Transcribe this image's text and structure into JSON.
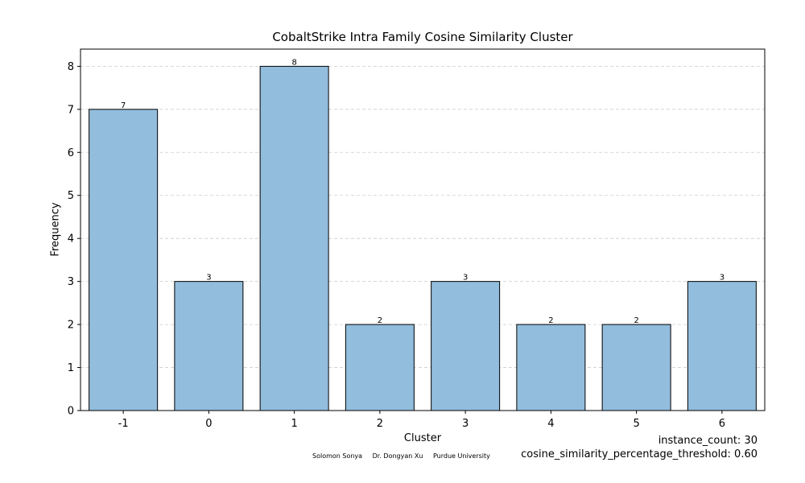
{
  "chart_data": {
    "type": "bar",
    "title": "CobaltStrike Intra Family Cosine Similarity Cluster",
    "xlabel": "Cluster",
    "ylabel": "Frequency",
    "categories": [
      "-1",
      "0",
      "1",
      "2",
      "3",
      "4",
      "5",
      "6"
    ],
    "values": [
      7,
      3,
      8,
      2,
      3,
      2,
      2,
      3
    ],
    "data_labels": [
      "7",
      "3",
      "8",
      "2",
      "3",
      "2",
      "2",
      "3"
    ],
    "ylim": [
      0,
      8.4
    ],
    "yticks": [
      0,
      1,
      2,
      3,
      4,
      5,
      6,
      7,
      8
    ],
    "grid": "horizontal dashed",
    "bar_color": "#92bddc",
    "edge_color": "#000000"
  },
  "annotations": {
    "instance_count": "instance_count: 30",
    "threshold": "cosine_similarity_percentage_threshold: 0.60"
  },
  "credits": {
    "author": "Solomon Sonya",
    "advisor": "Dr. Dongyan Xu",
    "institution": "Purdue University"
  }
}
